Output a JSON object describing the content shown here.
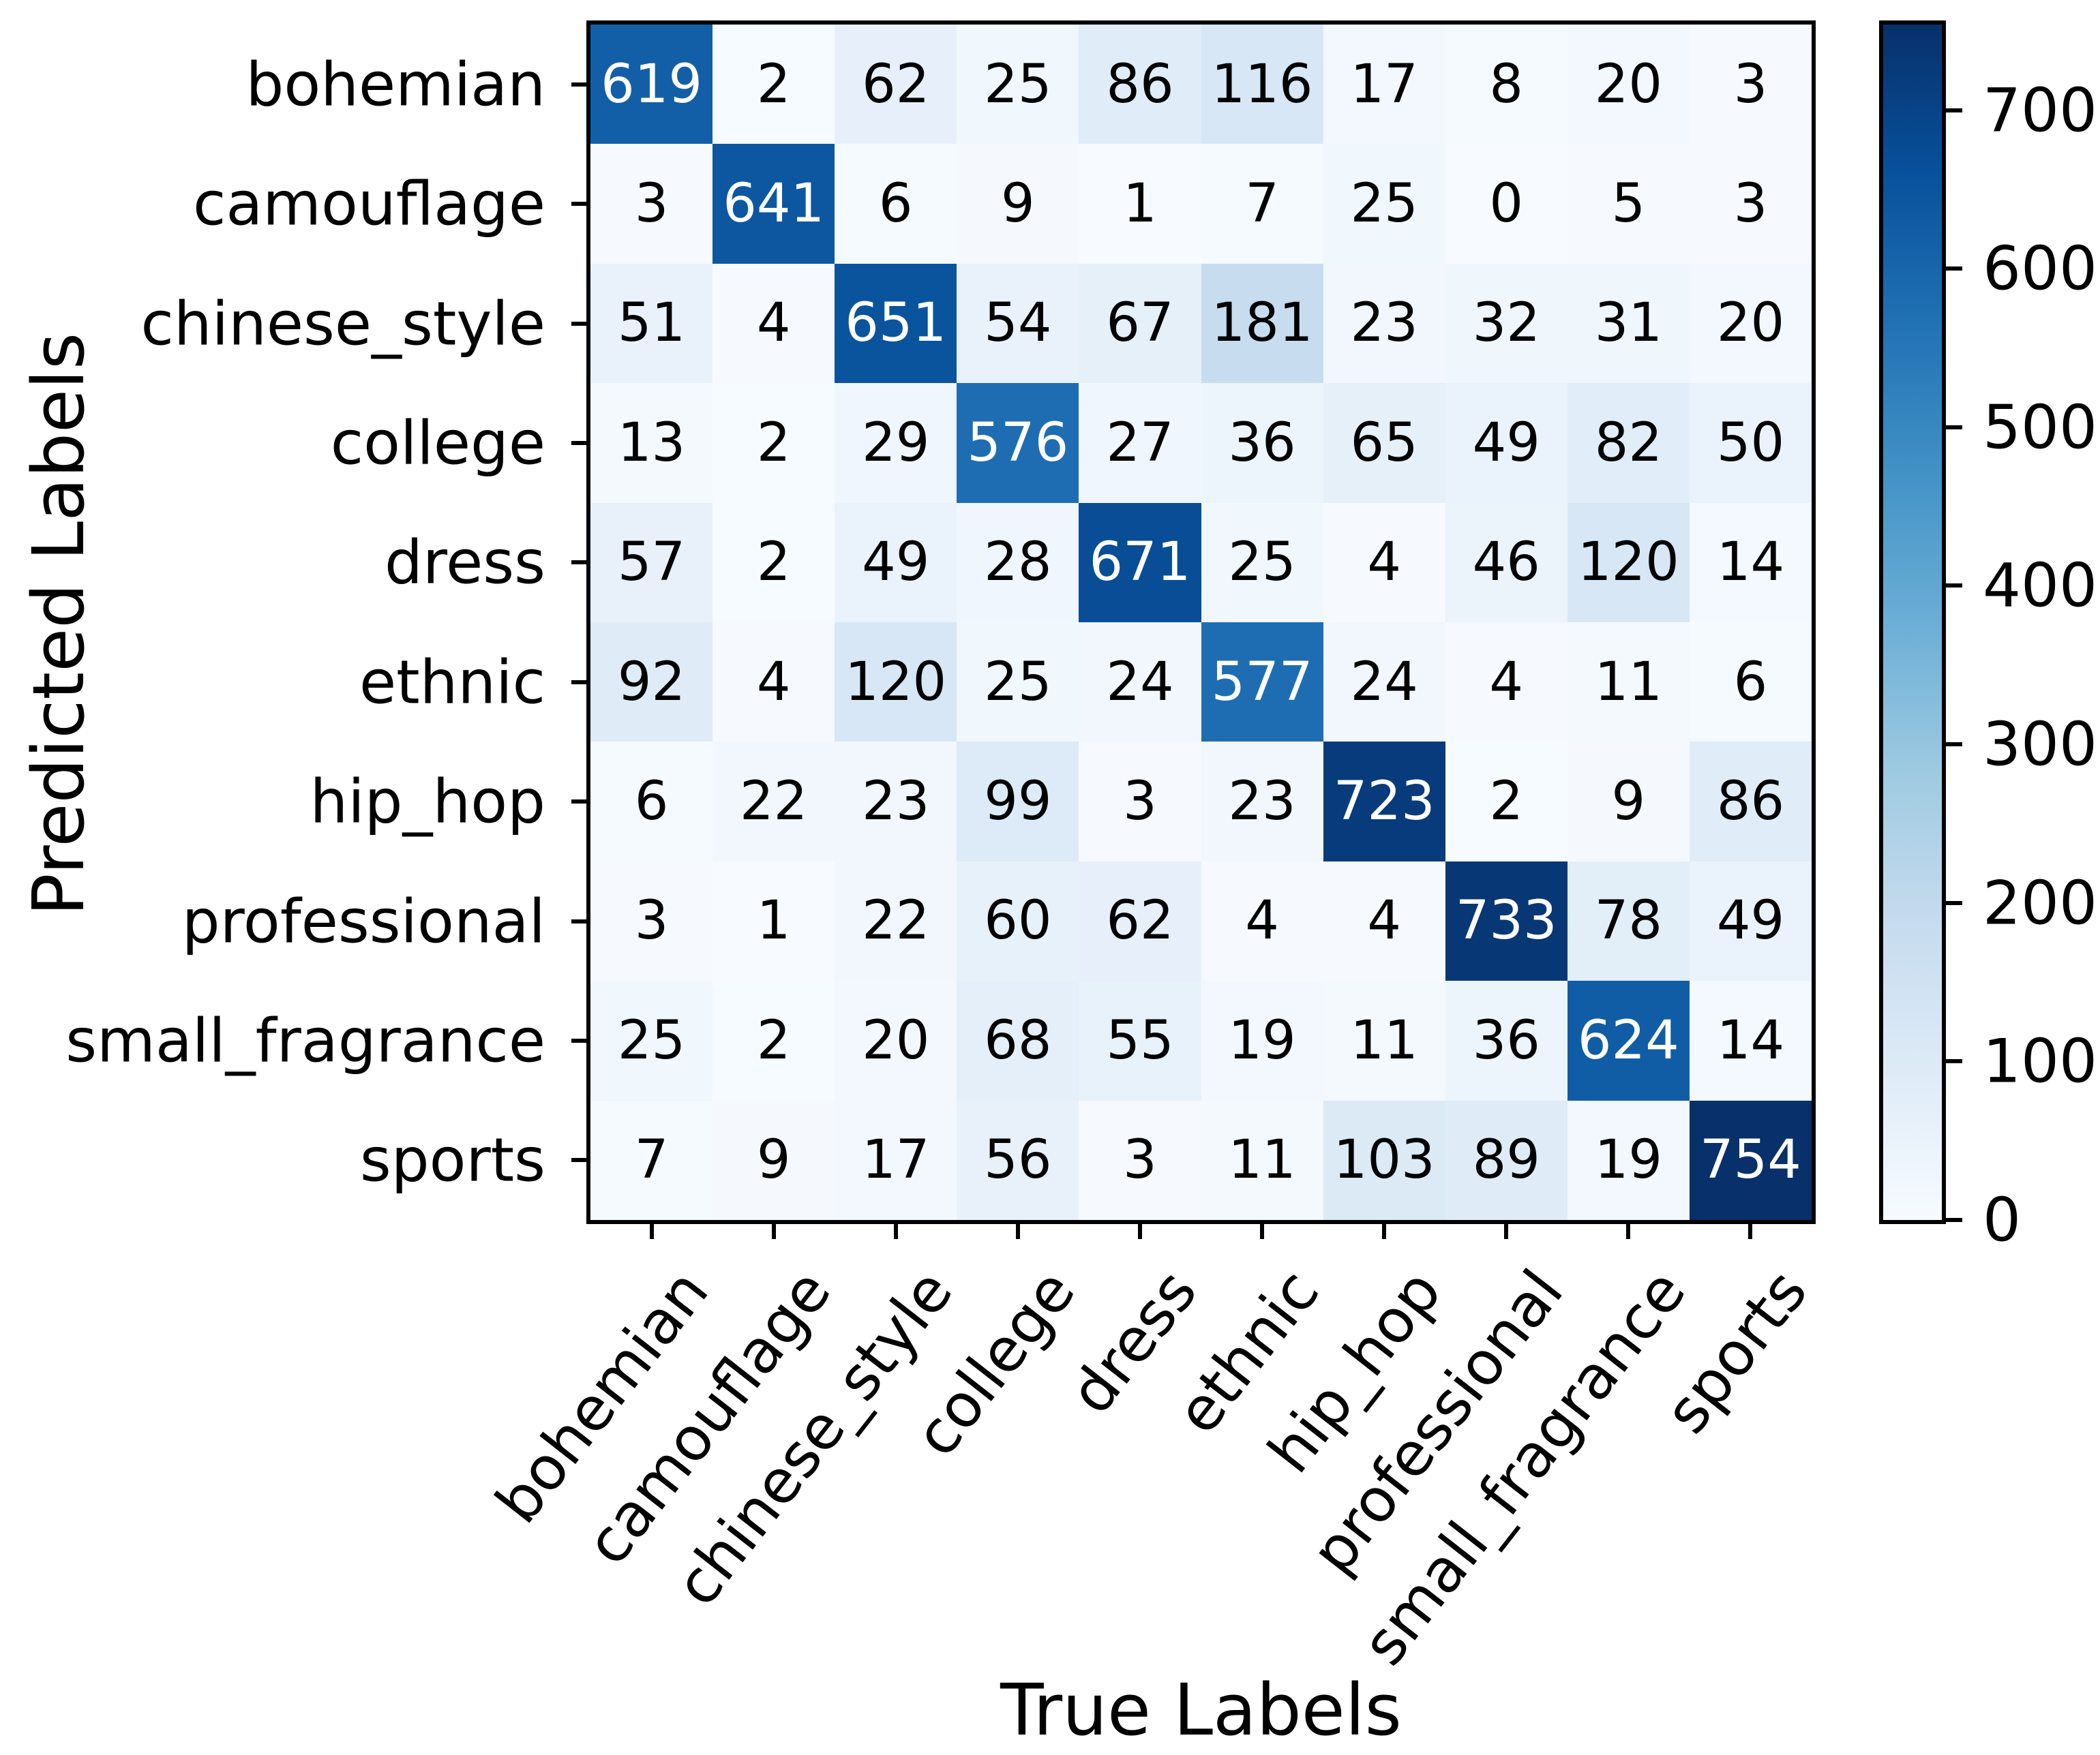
{
  "figure": {
    "xlabel": "True Labels",
    "ylabel": "Predicted Labels"
  },
  "chart_data": {
    "type": "heatmap",
    "title": "",
    "xlabel": "True Labels",
    "ylabel": "Predicted Labels",
    "categories": [
      "bohemian",
      "camouflage",
      "chinese_style",
      "college",
      "dress",
      "ethnic",
      "hip_hop",
      "professional",
      "small_fragrance",
      "sports"
    ],
    "matrix": [
      [
        619,
        2,
        62,
        25,
        86,
        116,
        17,
        8,
        20,
        3
      ],
      [
        3,
        641,
        6,
        9,
        1,
        7,
        25,
        0,
        5,
        3
      ],
      [
        51,
        4,
        651,
        54,
        67,
        181,
        23,
        32,
        31,
        20
      ],
      [
        13,
        2,
        29,
        576,
        27,
        36,
        65,
        49,
        82,
        50
      ],
      [
        57,
        2,
        49,
        28,
        671,
        25,
        4,
        46,
        120,
        14
      ],
      [
        92,
        4,
        120,
        25,
        24,
        577,
        24,
        4,
        11,
        6
      ],
      [
        6,
        22,
        23,
        99,
        3,
        23,
        723,
        2,
        9,
        86
      ],
      [
        3,
        1,
        22,
        60,
        62,
        4,
        4,
        733,
        78,
        49
      ],
      [
        25,
        2,
        20,
        68,
        55,
        19,
        11,
        36,
        624,
        14
      ],
      [
        7,
        9,
        17,
        56,
        3,
        11,
        103,
        89,
        19,
        754
      ]
    ],
    "vmin": 0,
    "vmax": 754,
    "colorbar_ticks": [
      0,
      100,
      200,
      300,
      400,
      500,
      600,
      700
    ],
    "colormap_name": "Blues",
    "colormap_stops": [
      "#f7fbff",
      "#deebf7",
      "#c6dbef",
      "#9ecae1",
      "#6baed6",
      "#4292c6",
      "#2171b5",
      "#08519c",
      "#08306b"
    ],
    "colors": {
      "cell_text_dark": "#000000",
      "cell_text_light": "#ffffff",
      "spine": "#000000",
      "background": "#ffffff"
    },
    "text_color_threshold": 0.55,
    "legend_position": "right-colorbar",
    "grid": false
  }
}
